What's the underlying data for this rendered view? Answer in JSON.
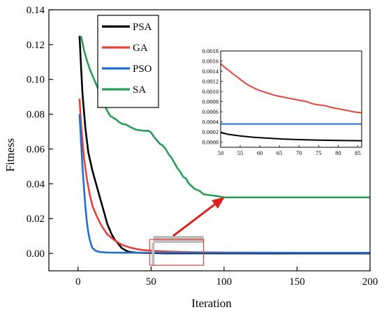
{
  "chart_data": {
    "type": "line",
    "title": "",
    "xlabel": "Iteration",
    "ylabel": "Fitness",
    "xlim": [
      -20,
      200
    ],
    "ylim": [
      -0.01,
      0.14
    ],
    "xticks": [
      "0",
      "50",
      "100",
      "150",
      "200"
    ],
    "yticks": [
      "0.00",
      "0.02",
      "0.04",
      "0.06",
      "0.08",
      "0.10",
      "0.12",
      "0.14"
    ],
    "legend_position": "top-left",
    "series": [
      {
        "name": "PSA",
        "color": "#000000",
        "points": [
          [
            1,
            0.125
          ],
          [
            2,
            0.108
          ],
          [
            3,
            0.092
          ],
          [
            5,
            0.072
          ],
          [
            7,
            0.058
          ],
          [
            10,
            0.047
          ],
          [
            12,
            0.041
          ],
          [
            15,
            0.032
          ],
          [
            18,
            0.023
          ],
          [
            20,
            0.017
          ],
          [
            23,
            0.011
          ],
          [
            25,
            0.008
          ],
          [
            28,
            0.005
          ],
          [
            30,
            0.003
          ],
          [
            33,
            0.0015
          ],
          [
            35,
            0.0009
          ],
          [
            40,
            0.0004
          ],
          [
            50,
            0.0002
          ],
          [
            60,
            8e-05
          ],
          [
            85,
            2e-05
          ],
          [
            200,
            0.0
          ]
        ]
      },
      {
        "name": "GA",
        "color": "#e8413a",
        "points": [
          [
            1,
            0.089
          ],
          [
            2,
            0.075
          ],
          [
            4,
            0.055
          ],
          [
            6,
            0.043
          ],
          [
            8,
            0.034
          ],
          [
            10,
            0.027
          ],
          [
            13,
            0.021
          ],
          [
            16,
            0.016
          ],
          [
            20,
            0.011
          ],
          [
            25,
            0.0075
          ],
          [
            30,
            0.005
          ],
          [
            35,
            0.0035
          ],
          [
            40,
            0.0025
          ],
          [
            45,
            0.0019
          ],
          [
            50,
            0.0016
          ],
          [
            55,
            0.0013
          ],
          [
            60,
            0.0011
          ],
          [
            65,
            0.00095
          ],
          [
            70,
            0.00085
          ],
          [
            75,
            0.00075
          ],
          [
            80,
            0.00068
          ],
          [
            85,
            0.0006
          ],
          [
            100,
            0.0005
          ],
          [
            150,
            0.0003
          ],
          [
            200,
            0.00025
          ]
        ]
      },
      {
        "name": "PSO",
        "color": "#1f6fd1",
        "points": [
          [
            1,
            0.08
          ],
          [
            2,
            0.065
          ],
          [
            3,
            0.05
          ],
          [
            4,
            0.038
          ],
          [
            5,
            0.027
          ],
          [
            6,
            0.018
          ],
          [
            7,
            0.012
          ],
          [
            8,
            0.008
          ],
          [
            9,
            0.005
          ],
          [
            10,
            0.003
          ],
          [
            12,
            0.0015
          ],
          [
            15,
            0.0008
          ],
          [
            20,
            0.0005
          ],
          [
            30,
            0.00037
          ],
          [
            200,
            0.00035
          ]
        ]
      },
      {
        "name": "SA",
        "color": "#2a9d57",
        "points": [
          [
            2,
            0.125
          ],
          [
            4,
            0.117
          ],
          [
            6,
            0.111
          ],
          [
            8,
            0.106
          ],
          [
            10,
            0.102
          ],
          [
            12,
            0.098
          ],
          [
            14,
            0.094
          ],
          [
            16,
            0.089
          ],
          [
            18,
            0.085
          ],
          [
            20,
            0.082
          ],
          [
            22,
            0.079
          ],
          [
            24,
            0.078
          ],
          [
            26,
            0.077
          ],
          [
            28,
            0.0755
          ],
          [
            30,
            0.0745
          ],
          [
            33,
            0.074
          ],
          [
            36,
            0.0725
          ],
          [
            40,
            0.071
          ],
          [
            45,
            0.0705
          ],
          [
            48,
            0.0705
          ],
          [
            50,
            0.0695
          ],
          [
            52,
            0.067
          ],
          [
            54,
            0.065
          ],
          [
            56,
            0.063
          ],
          [
            58,
            0.062
          ],
          [
            60,
            0.06
          ],
          [
            62,
            0.057
          ],
          [
            64,
            0.055
          ],
          [
            66,
            0.052
          ],
          [
            68,
            0.049
          ],
          [
            70,
            0.047
          ],
          [
            72,
            0.044
          ],
          [
            74,
            0.043
          ],
          [
            76,
            0.04
          ],
          [
            78,
            0.0385
          ],
          [
            80,
            0.037
          ],
          [
            83,
            0.036
          ],
          [
            86,
            0.034
          ],
          [
            90,
            0.0335
          ],
          [
            95,
            0.033
          ],
          [
            100,
            0.0322
          ],
          [
            120,
            0.0322
          ],
          [
            150,
            0.0322
          ],
          [
            200,
            0.0322
          ]
        ]
      }
    ],
    "inset": {
      "xlim": [
        50,
        86
      ],
      "ylim": [
        -0.0001,
        0.0018
      ],
      "xticks": [
        "50",
        "55",
        "60",
        "65",
        "70",
        "75",
        "80",
        "85"
      ],
      "yticks": [
        "0.0000",
        "0.0002",
        "0.0004",
        "0.0006",
        "0.0008",
        "0.0010",
        "0.0012",
        "0.0014",
        "0.0016",
        "0.0018"
      ],
      "series": [
        {
          "name": "PSA",
          "color": "#000000",
          "points": [
            [
              50,
              0.00019
            ],
            [
              52,
              0.000155
            ],
            [
              55,
              0.000125
            ],
            [
              58,
              0.0001
            ],
            [
              60,
              9e-05
            ],
            [
              63,
              7.5e-05
            ],
            [
              66,
              6.2e-05
            ],
            [
              70,
              5.2e-05
            ],
            [
              75,
              4.2e-05
            ],
            [
              80,
              3.5e-05
            ],
            [
              86,
              3e-05
            ]
          ]
        },
        {
          "name": "GA",
          "color": "#e8413a",
          "points": [
            [
              50,
              0.00155
            ],
            [
              51,
              0.00148
            ],
            [
              52,
              0.00142
            ],
            [
              53,
              0.00136
            ],
            [
              54,
              0.0013
            ],
            [
              55,
              0.00124
            ],
            [
              56,
              0.00118
            ],
            [
              57,
              0.00113
            ],
            [
              58,
              0.00109
            ],
            [
              59,
              0.00105
            ],
            [
              60,
              0.00102
            ],
            [
              62,
              0.00097
            ],
            [
              64,
              0.00092
            ],
            [
              66,
              0.00089
            ],
            [
              68,
              0.00086
            ],
            [
              70,
              0.00083
            ],
            [
              72,
              0.0008
            ],
            [
              73,
              0.00077
            ],
            [
              74,
              0.00075
            ],
            [
              75,
              0.000735
            ],
            [
              76,
              0.00073
            ],
            [
              77,
              0.000715
            ],
            [
              78,
              0.00069
            ],
            [
              80,
              0.00066
            ],
            [
              82,
              0.00063
            ],
            [
              84,
              0.0006
            ],
            [
              86,
              0.00058
            ]
          ]
        },
        {
          "name": "PSO",
          "color": "#1f6fd1",
          "points": [
            [
              50,
              0.00036
            ],
            [
              86,
              0.00036
            ]
          ]
        }
      ]
    }
  }
}
